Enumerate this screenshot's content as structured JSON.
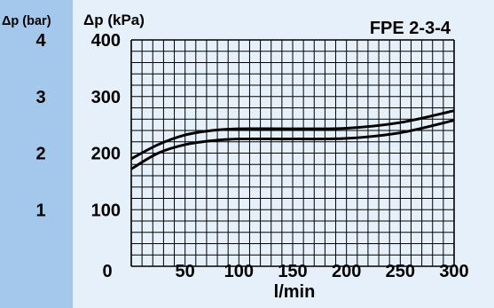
{
  "chart_data": {
    "type": "line",
    "title": "FPE 2-3-4",
    "xlabel": "l/min",
    "ylabel": "Δp (kPa)",
    "y2label": "Δp (bar)",
    "x_ticks": [
      "0",
      "50",
      "100",
      "150",
      "200",
      "250",
      "300"
    ],
    "y_ticks": [
      "100",
      "200",
      "300",
      "400"
    ],
    "y2_ticks": [
      "1",
      "2",
      "3",
      "4"
    ],
    "xlim": [
      0,
      300
    ],
    "ylim": [
      0,
      400
    ],
    "y2lim": [
      0,
      4
    ],
    "grid": true,
    "colors": {
      "background": "#e6f0fa",
      "side_band": "#a4c8ec",
      "grid": "#000000",
      "line": "#000000"
    },
    "series": [
      {
        "x": [
          0,
          25,
          50,
          75,
          100,
          150,
          200,
          250,
          300
        ],
        "values": [
          190,
          215,
          232,
          240,
          243,
          243,
          244,
          254,
          275
        ]
      },
      {
        "x": [
          0,
          25,
          50,
          75,
          100,
          150,
          200,
          250,
          300
        ],
        "values": [
          172,
          200,
          215,
          222,
          225,
          225,
          226,
          236,
          258
        ]
      }
    ]
  }
}
